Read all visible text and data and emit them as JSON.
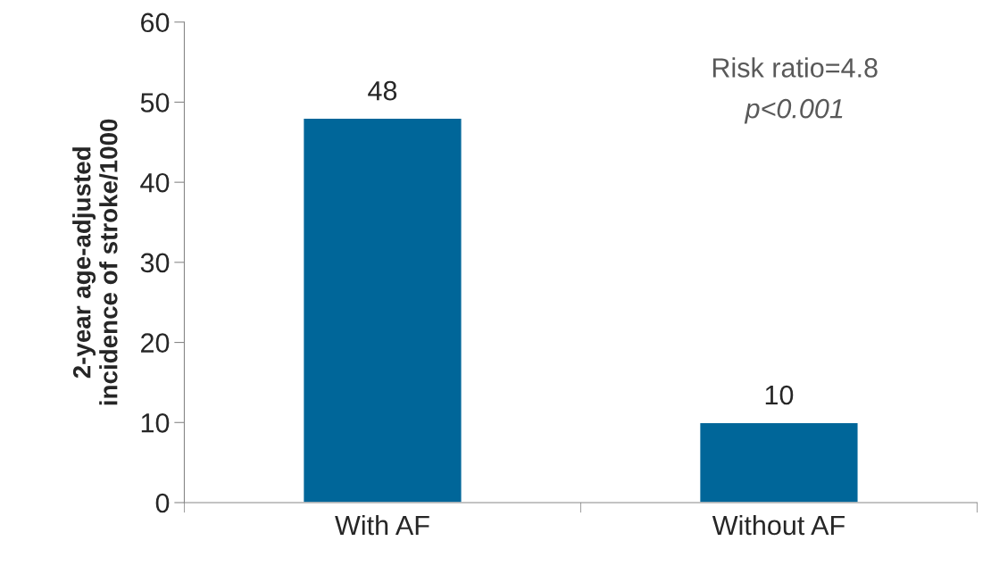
{
  "chart_data": {
    "type": "bar",
    "ylabel": "2-year age-adjusted\nincidence of stroke/1000",
    "categories": [
      "With AF",
      "Without AF"
    ],
    "values": [
      48,
      10
    ],
    "color": "#006699",
    "ylim": [
      0,
      60
    ],
    "yticks": [
      0,
      10,
      20,
      30,
      40,
      50,
      60
    ],
    "grid": false,
    "data_labels": true,
    "annotations": [
      "Risk ratio=4.8",
      "p<0.001"
    ]
  }
}
